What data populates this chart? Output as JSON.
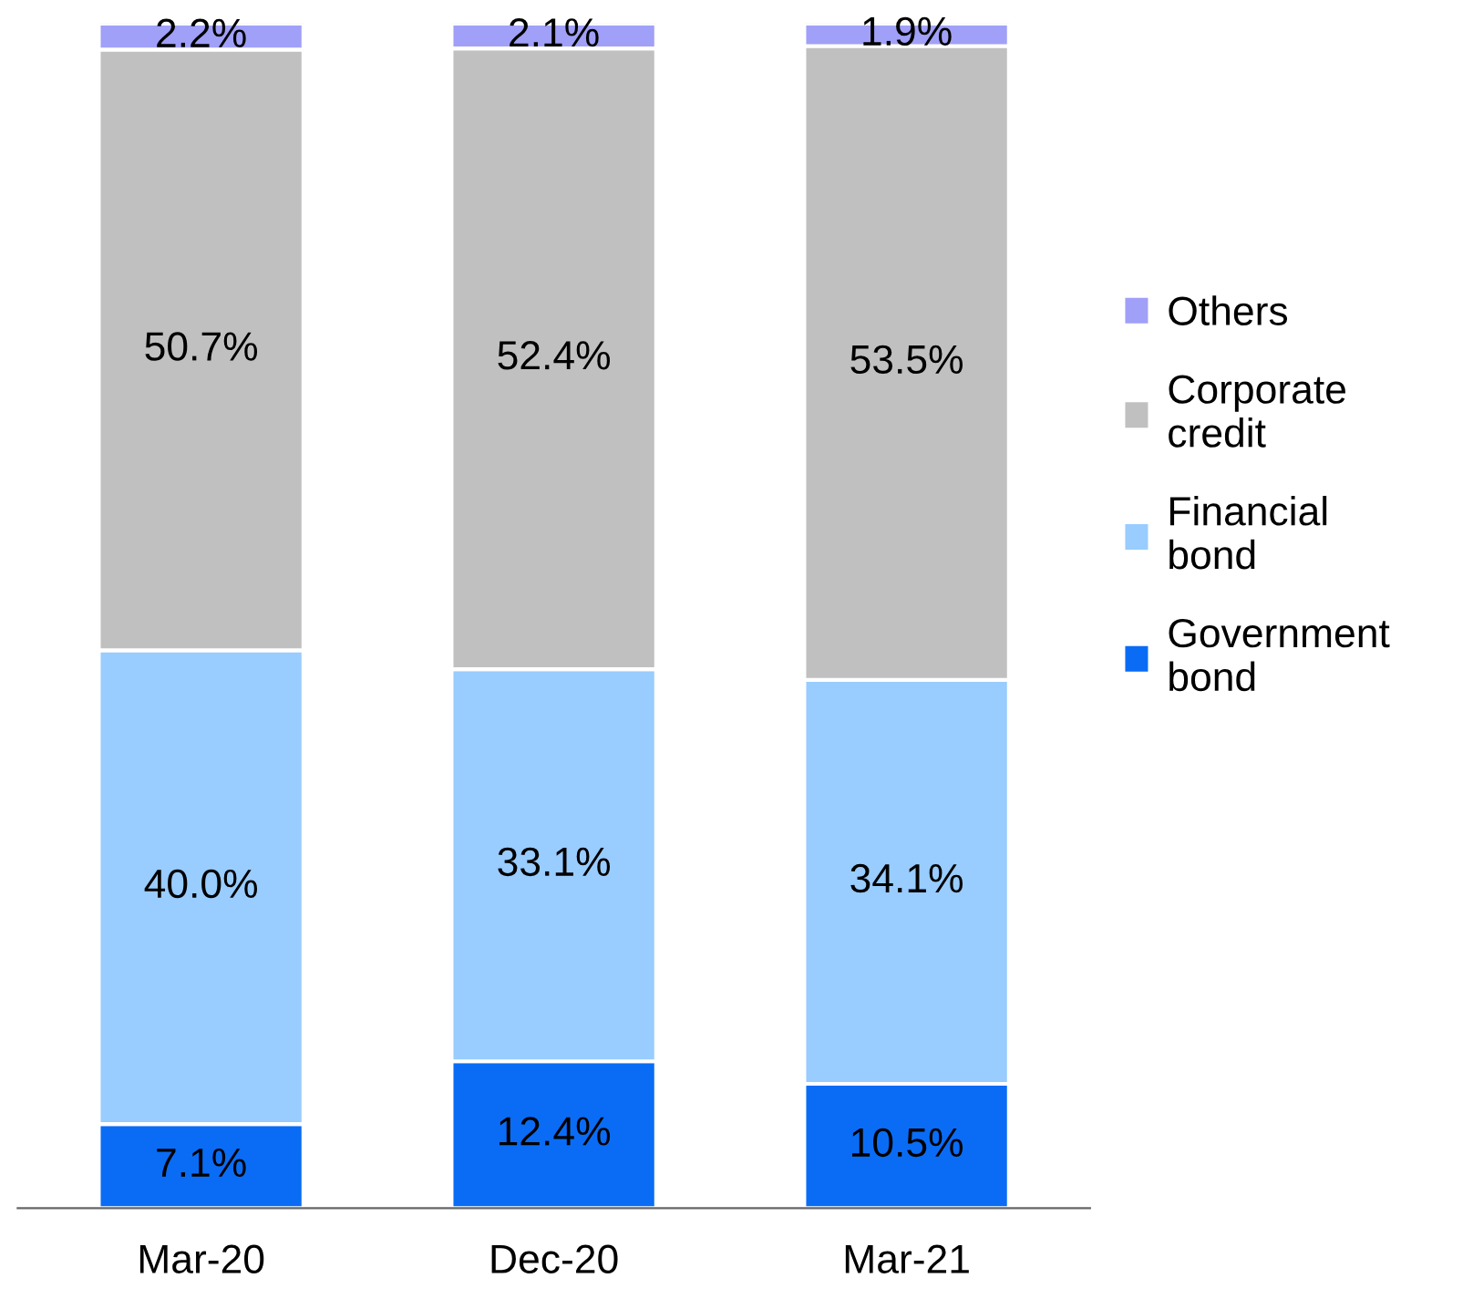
{
  "chart_data": {
    "type": "bar",
    "stacked": true,
    "legend": "right",
    "grid": false,
    "categories": [
      "Mar-20",
      "Dec-20",
      "Mar-21"
    ],
    "series": [
      {
        "name": "Government bond",
        "color": "#0a6cf5",
        "values": [
          7.1,
          12.4,
          10.5
        ],
        "value_labels": [
          "7.1%",
          "12.4%",
          "10.5%"
        ]
      },
      {
        "name": "Financial bond",
        "color": "#99ccff",
        "values": [
          40.0,
          33.1,
          34.1
        ],
        "value_labels": [
          "40.0%",
          "33.1%",
          "34.1%"
        ]
      },
      {
        "name": "Corporate credit",
        "color": "#c0c0c0",
        "values": [
          50.7,
          52.4,
          53.5
        ],
        "value_labels": [
          "50.7%",
          "52.4%",
          "53.5%"
        ]
      },
      {
        "name": "Others",
        "color": "#a0a0f8",
        "values": [
          2.2,
          2.1,
          1.9
        ],
        "value_labels": [
          "2.2%",
          "2.1%",
          "1.9%"
        ]
      }
    ]
  }
}
